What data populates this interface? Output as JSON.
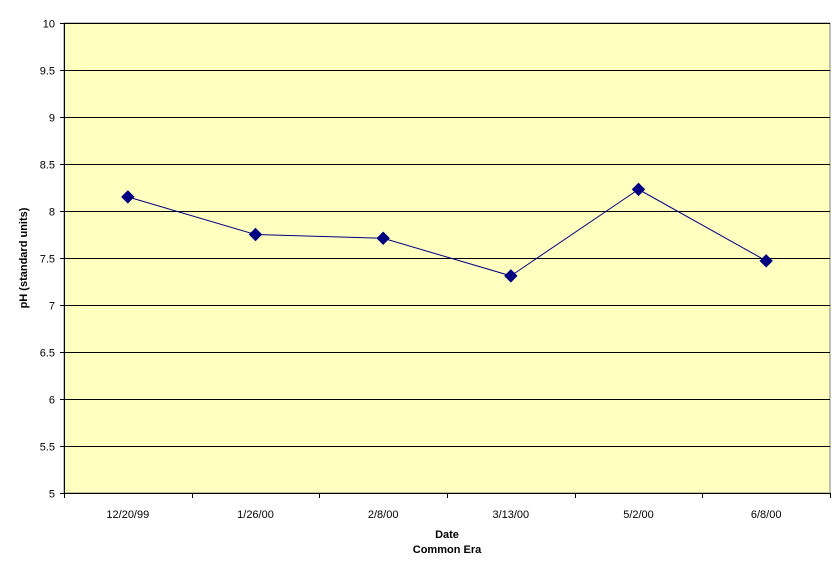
{
  "chart_data": {
    "type": "line",
    "categories": [
      "12/20/99",
      "1/26/00",
      "2/8/00",
      "3/13/00",
      "5/2/00",
      "6/8/00"
    ],
    "series": [
      {
        "values": [
          8.15,
          7.75,
          7.71,
          7.31,
          8.23,
          7.47
        ],
        "color": "#000080",
        "marker": "diamond"
      }
    ],
    "title": "",
    "xlabel": "Date",
    "xlabel_line2": "Common Era",
    "ylabel": "pH (standard units)",
    "ylim": [
      5,
      10
    ],
    "yticks": [
      "5",
      "5.5",
      "6",
      "6.5",
      "7",
      "7.5",
      "8",
      "8.5",
      "9",
      "9.5",
      "10"
    ],
    "grid": true,
    "legend": "none",
    "plot_background": "#FFFFC0",
    "grid_color": "#000000"
  }
}
